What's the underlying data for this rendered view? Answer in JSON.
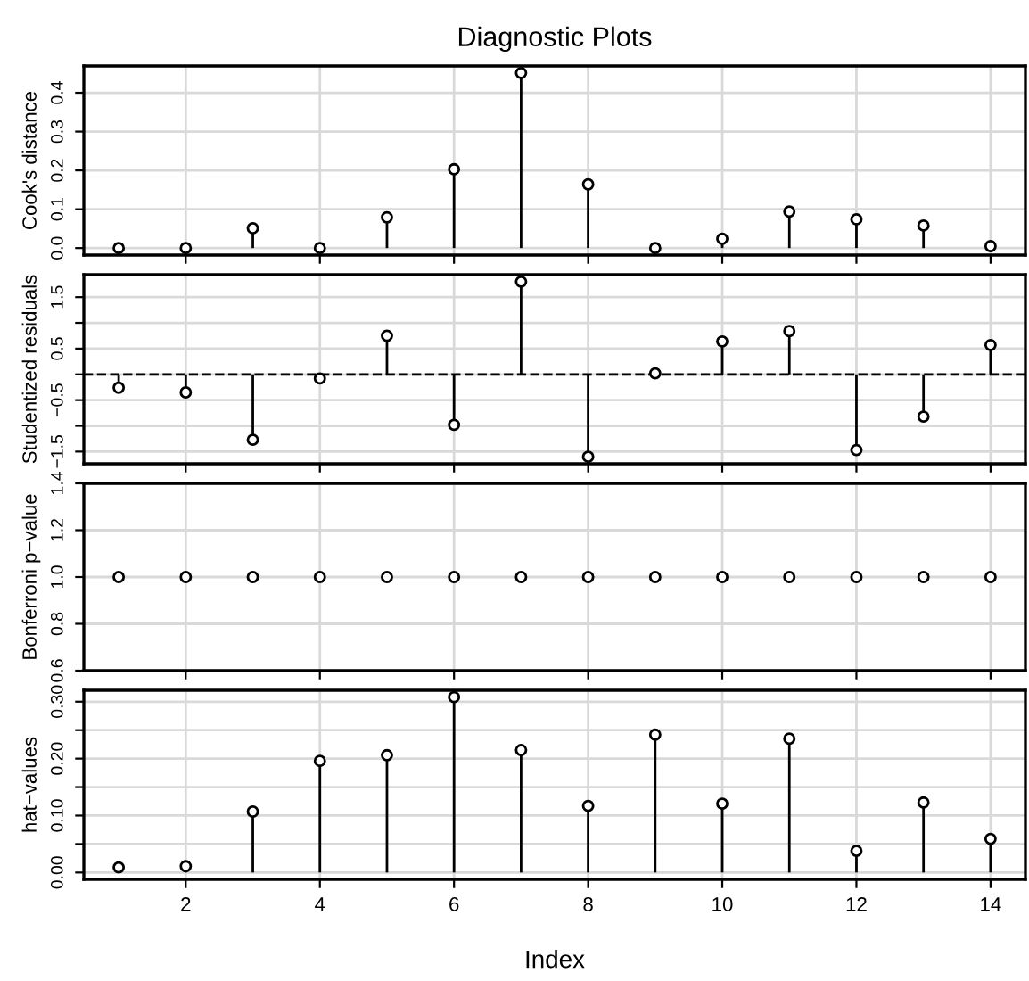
{
  "chart_data": [
    {
      "type": "lollipop",
      "title": "Diagnostic Plots",
      "ylabel": "Cook's distance",
      "x": [
        1,
        2,
        3,
        4,
        5,
        6,
        7,
        8,
        9,
        10,
        11,
        12,
        13,
        14
      ],
      "xlim": [
        0.48,
        14.52
      ],
      "xticks": [
        2,
        4,
        6,
        8,
        10,
        12,
        14
      ],
      "series": [
        {
          "color": "#000000",
          "values": [
            0.0,
            0.0,
            0.051,
            0.0,
            0.079,
            0.203,
            0.451,
            0.164,
            0.0,
            0.024,
            0.094,
            0.074,
            0.058,
            0.005
          ]
        }
      ],
      "ylim": [
        -0.018,
        0.469
      ],
      "yticks": [
        {
          "value": 0,
          "label": "0.0"
        },
        {
          "value": 0.1,
          "label": "0.1"
        },
        {
          "value": 0.2,
          "label": "0.2"
        },
        {
          "value": 0.3,
          "label": "0.3"
        },
        {
          "value": 0.4,
          "label": "0.4"
        }
      ],
      "grid": true,
      "marker": "circle",
      "tick_labels": "y"
    },
    {
      "type": "lollipop",
      "ylabel": "Studentized residuals",
      "x": [
        1,
        2,
        3,
        4,
        5,
        6,
        7,
        8,
        9,
        10,
        11,
        12,
        13,
        14
      ],
      "xlim": [
        0.48,
        14.52
      ],
      "xticks": [
        2,
        4,
        6,
        8,
        10,
        12,
        14
      ],
      "series": [
        {
          "color": "#000000",
          "values": [
            -0.26,
            -0.35,
            -1.27,
            -0.08,
            0.75,
            -0.98,
            1.8,
            -1.6,
            0.02,
            0.64,
            0.84,
            -1.47,
            -0.82,
            0.57
          ]
        }
      ],
      "ylim": [
        -1.736,
        1.936
      ],
      "yticks": [
        {
          "value": -1.5,
          "label": "−1.5"
        },
        {
          "value": -1,
          "label": null
        },
        {
          "value": -0.5,
          "label": "−0.5"
        },
        {
          "value": 0,
          "label": null
        },
        {
          "value": 0.5,
          "label": "0.5"
        },
        {
          "value": 1,
          "label": null
        },
        {
          "value": 1.5,
          "label": "1.5"
        }
      ],
      "ref_lines": [
        {
          "axis": "y",
          "value": 0,
          "line_style": "dashed",
          "color": "#000000"
        }
      ],
      "grid": true,
      "marker": "circle",
      "tick_labels": "y"
    },
    {
      "type": "scatter",
      "ylabel": "Bonferroni p−value",
      "x": [
        1,
        2,
        3,
        4,
        5,
        6,
        7,
        8,
        9,
        10,
        11,
        12,
        13,
        14
      ],
      "xlim": [
        0.48,
        14.52
      ],
      "xticks": [
        2,
        4,
        6,
        8,
        10,
        12,
        14
      ],
      "series": [
        {
          "color": "#000000",
          "values": [
            1,
            1,
            1,
            1,
            1,
            1,
            1,
            1,
            1,
            1,
            1,
            1,
            1,
            1
          ]
        }
      ],
      "ylim": [
        0.6,
        1.4
      ],
      "yticks": [
        {
          "value": 0.6,
          "label": "0.6"
        },
        {
          "value": 0.8,
          "label": "0.8"
        },
        {
          "value": 1.0,
          "label": "1.0"
        },
        {
          "value": 1.2,
          "label": "1.2"
        },
        {
          "value": 1.4,
          "label": "1.4"
        }
      ],
      "grid": true,
      "marker": "circle",
      "tick_labels": "y"
    },
    {
      "type": "lollipop",
      "ylabel": "hat−values",
      "xlabel": "Index",
      "x": [
        1,
        2,
        3,
        4,
        5,
        6,
        7,
        8,
        9,
        10,
        11,
        12,
        13,
        14
      ],
      "xlim": [
        0.48,
        14.52
      ],
      "xticks": [
        2,
        4,
        6,
        8,
        10,
        12,
        14
      ],
      "series": [
        {
          "color": "#000000",
          "values": [
            0.009,
            0.011,
            0.107,
            0.196,
            0.206,
            0.308,
            0.215,
            0.117,
            0.242,
            0.121,
            0.235,
            0.038,
            0.123,
            0.059
          ]
        }
      ],
      "ylim": [
        -0.012,
        0.32
      ],
      "yticks": [
        {
          "value": 0,
          "label": "0.00"
        },
        {
          "value": 0.05,
          "label": null
        },
        {
          "value": 0.1,
          "label": "0.10"
        },
        {
          "value": 0.15,
          "label": null
        },
        {
          "value": 0.2,
          "label": "0.20"
        },
        {
          "value": 0.25,
          "label": null
        },
        {
          "value": 0.3,
          "label": "0.30"
        }
      ],
      "grid": true,
      "marker": "circle"
    }
  ]
}
